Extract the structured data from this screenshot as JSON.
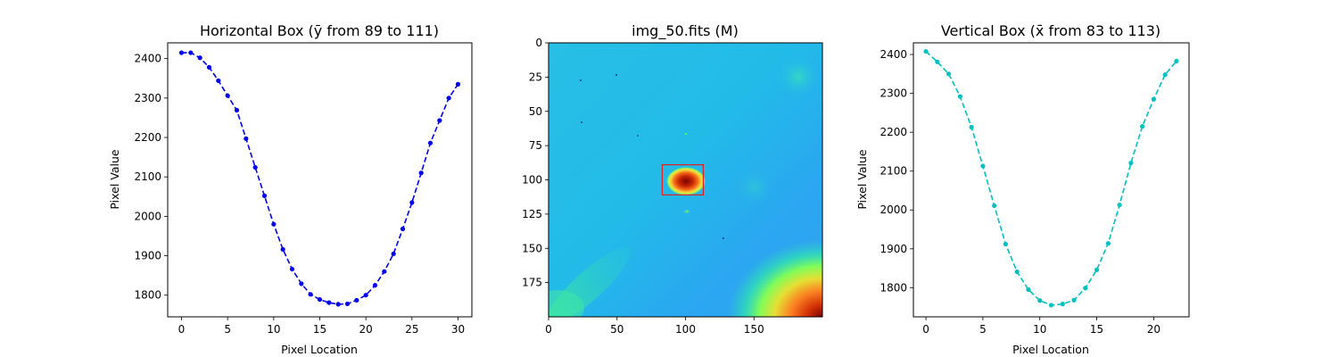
{
  "colors": {
    "left_series": "#0000ee",
    "right_series": "#00bfbf",
    "roi_box": "#dd2222",
    "axes": "#000000"
  },
  "chart_data": [
    {
      "type": "line",
      "title": "Horizontal Box (ȳ from 89 to 111)",
      "xlabel": "Pixel Location",
      "ylabel": "Pixel Value",
      "xlim": [
        -1.5,
        31.5
      ],
      "ylim": [
        1745,
        2440
      ],
      "xticks": [
        0,
        5,
        10,
        15,
        20,
        25,
        30
      ],
      "yticks": [
        1800,
        1900,
        2000,
        2100,
        2200,
        2300,
        2400
      ],
      "line_style": "dashed",
      "marker": "circle",
      "grid": false,
      "series": [
        {
          "x": [
            0,
            1,
            2,
            3,
            4,
            5,
            6,
            7,
            8,
            9,
            10,
            11,
            12,
            13,
            14,
            15,
            16,
            17,
            18,
            19,
            20,
            21,
            22,
            23,
            24,
            25,
            26,
            27,
            28,
            29,
            30
          ],
          "values": [
            2415,
            2415,
            2402,
            2378,
            2344,
            2306,
            2269,
            2197,
            2124,
            2052,
            1980,
            1916,
            1866,
            1829,
            1802,
            1789,
            1781,
            1777,
            1778,
            1787,
            1800,
            1825,
            1860,
            1905,
            1968,
            2035,
            2110,
            2186,
            2243,
            2300,
            2335
          ]
        }
      ]
    },
    {
      "type": "heatmap",
      "title": "img_50.fits (M)",
      "xlim": [
        0,
        200
      ],
      "ylim": [
        200,
        0
      ],
      "xticks": [
        0,
        50,
        100,
        150
      ],
      "yticks": [
        0,
        25,
        50,
        75,
        100,
        125,
        150,
        175
      ],
      "colormap": "turbo",
      "roi_box": {
        "x_from": 83,
        "x_to": 113,
        "y_from": 89,
        "y_to": 111
      }
    },
    {
      "type": "line",
      "title": "Vertical Box (x̄ from 83 to 113)",
      "xlabel": "Pixel Location",
      "ylabel": "Pixel Value",
      "xlim": [
        -1.1,
        23.1
      ],
      "ylim": [
        1725,
        2430
      ],
      "xticks": [
        0,
        5,
        10,
        15,
        20
      ],
      "yticks": [
        1800,
        1900,
        2000,
        2100,
        2200,
        2300,
        2400
      ],
      "line_style": "dashed",
      "marker": "circle",
      "grid": false,
      "series": [
        {
          "x": [
            0,
            1,
            2,
            3,
            4,
            5,
            6,
            7,
            8,
            9,
            10,
            11,
            12,
            13,
            14,
            15,
            16,
            17,
            18,
            19,
            20,
            21,
            22
          ],
          "values": [
            2408,
            2381,
            2350,
            2292,
            2213,
            2113,
            2011,
            1912,
            1841,
            1795,
            1767,
            1755,
            1758,
            1768,
            1799,
            1846,
            1914,
            2013,
            2121,
            2215,
            2285,
            2348,
            2383
          ]
        }
      ]
    }
  ]
}
